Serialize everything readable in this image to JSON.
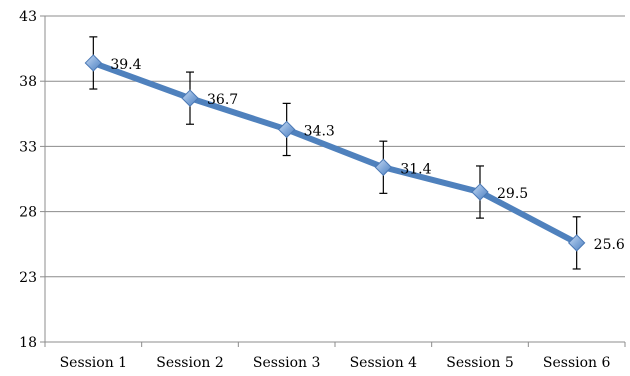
{
  "chart_data": {
    "type": "line",
    "categories": [
      "Session 1",
      "Session 2",
      "Session 3",
      "Session 4",
      "Session 5",
      "Session 6"
    ],
    "series": [
      {
        "values": [
          39.4,
          36.7,
          34.3,
          31.4,
          29.5,
          25.6
        ],
        "error_upper": [
          41.4,
          38.7,
          36.3,
          33.4,
          31.5,
          27.6
        ],
        "error_lower": [
          37.4,
          34.7,
          32.3,
          29.4,
          27.5,
          23.6
        ],
        "color": "#4f81bd",
        "marker": "diamond"
      }
    ],
    "data_labels": [
      "39.4",
      "36.7",
      "34.3",
      "31.4",
      "29.5",
      "25.6"
    ],
    "y_ticks": [
      18,
      23,
      28,
      33,
      38,
      43
    ],
    "y_tick_labels": [
      "18",
      "23",
      "28",
      "33",
      "38",
      "43"
    ],
    "ylim": [
      18,
      43
    ],
    "grid": true,
    "legend": "none",
    "title": "",
    "xlabel": "",
    "ylabel": ""
  }
}
